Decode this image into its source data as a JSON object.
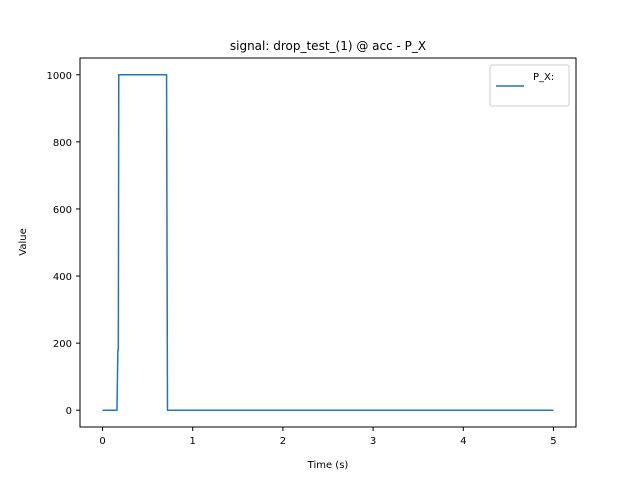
{
  "chart_data": {
    "type": "line",
    "title": "signal: drop_test_(1) @ acc - P_X",
    "xlabel": "Time (s)",
    "ylabel": "Value",
    "xlim": [
      -0.25,
      5.25
    ],
    "ylim": [
      -50,
      1050
    ],
    "xticks": [
      0,
      1,
      2,
      3,
      4,
      5
    ],
    "yticks": [
      0,
      200,
      400,
      600,
      800,
      1000
    ],
    "grid": false,
    "legend": {
      "position": "top-right"
    },
    "series": [
      {
        "name": "P_X:",
        "color": "#1f77b4",
        "points": [
          [
            0.0,
            0
          ],
          [
            0.16,
            0
          ],
          [
            0.17,
            180
          ],
          [
            0.175,
            180
          ],
          [
            0.18,
            1000
          ],
          [
            0.71,
            1000
          ],
          [
            0.72,
            0
          ],
          [
            5.0,
            0
          ]
        ]
      }
    ]
  }
}
